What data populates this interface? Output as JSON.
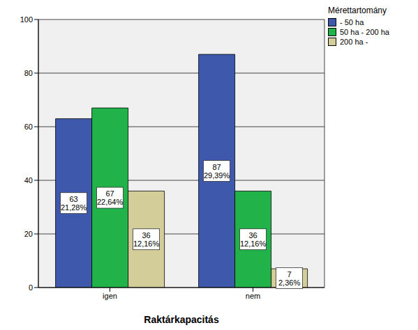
{
  "chart_data": {
    "type": "bar",
    "x_label": "Raktárkapacitás",
    "legend_title": "Mérettartomány",
    "categories": [
      "igen",
      "nem"
    ],
    "series": [
      {
        "name": "- 50 ha",
        "color": "#3e58ac",
        "values": [
          63,
          87
        ],
        "value_labels": [
          [
            "63",
            "21,28%"
          ],
          [
            "87",
            "29,39%"
          ]
        ]
      },
      {
        "name": "50 ha - 200 ha",
        "color": "#22b24a",
        "values": [
          67,
          36
        ],
        "value_labels": [
          [
            "67",
            "22,64%"
          ],
          [
            "36",
            "12,16%"
          ]
        ]
      },
      {
        "name": "200 ha -",
        "color": "#d3cd9a",
        "values": [
          36,
          7
        ],
        "value_labels": [
          [
            "36",
            "12,16%"
          ],
          [
            "7",
            "2,36%"
          ]
        ]
      }
    ],
    "ylim": [
      0,
      100
    ],
    "yticks": [
      0,
      20,
      40,
      60,
      80,
      100
    ],
    "grid": true,
    "legend": "upper right",
    "data_labels": true
  }
}
